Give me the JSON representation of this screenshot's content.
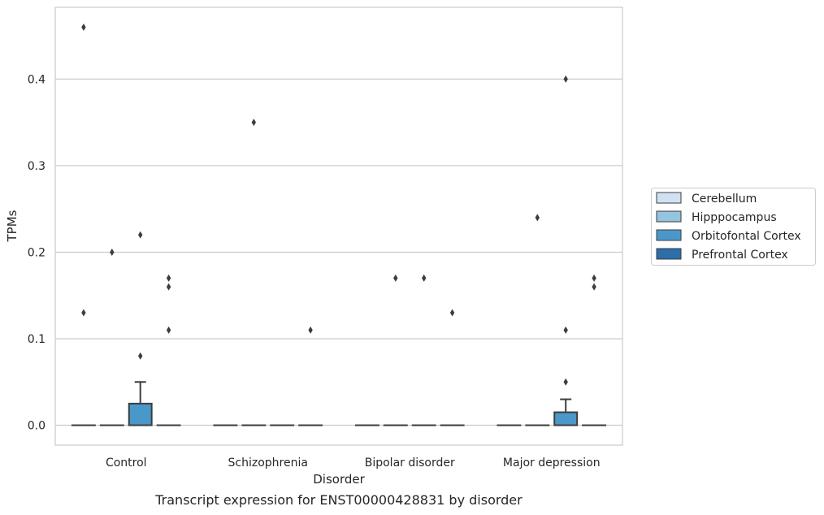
{
  "caption": "Transcript expression for ENST00000428831 by disorder",
  "chart_data": {
    "type": "box",
    "title": "",
    "xlabel": "Disorder",
    "ylabel": "TPMs",
    "categories": [
      "Control",
      "Schizophrenia",
      "Bipolar disorder",
      "Major depression"
    ],
    "ylim": [
      -0.023,
      0.483
    ],
    "yticks": [
      0.0,
      0.1,
      0.2,
      0.3,
      0.4
    ],
    "ytick_labels": [
      "0.0",
      "0.1",
      "0.2",
      "0.3",
      "0.4"
    ],
    "grid": "horizontal",
    "legend_position": "right",
    "series": [
      {
        "name": "Cerebellum",
        "color": "#d0e1f2",
        "boxes": [
          {
            "category": "Control",
            "q1": 0,
            "median": 0,
            "q3": 0,
            "whisker_low": 0,
            "whisker_high": 0,
            "outliers": [
              0.46,
              0.13
            ]
          },
          {
            "category": "Schizophrenia",
            "q1": 0,
            "median": 0,
            "q3": 0,
            "whisker_low": 0,
            "whisker_high": 0,
            "outliers": []
          },
          {
            "category": "Bipolar disorder",
            "q1": 0,
            "median": 0,
            "q3": 0,
            "whisker_low": 0,
            "whisker_high": 0,
            "outliers": []
          },
          {
            "category": "Major depression",
            "q1": 0,
            "median": 0,
            "q3": 0,
            "whisker_low": 0,
            "whisker_high": 0,
            "outliers": []
          }
        ]
      },
      {
        "name": "Hipppocampus",
        "color": "#94c4df",
        "boxes": [
          {
            "category": "Control",
            "q1": 0,
            "median": 0,
            "q3": 0,
            "whisker_low": 0,
            "whisker_high": 0,
            "outliers": [
              0.2
            ]
          },
          {
            "category": "Schizophrenia",
            "q1": 0,
            "median": 0,
            "q3": 0,
            "whisker_low": 0,
            "whisker_high": 0,
            "outliers": [
              0.35
            ]
          },
          {
            "category": "Bipolar disorder",
            "q1": 0,
            "median": 0,
            "q3": 0,
            "whisker_low": 0,
            "whisker_high": 0,
            "outliers": [
              0.17
            ]
          },
          {
            "category": "Major depression",
            "q1": 0,
            "median": 0,
            "q3": 0,
            "whisker_low": 0,
            "whisker_high": 0,
            "outliers": [
              0.24
            ]
          }
        ]
      },
      {
        "name": "Orbitofontal Cortex",
        "color": "#4a98c9",
        "boxes": [
          {
            "category": "Control",
            "q1": 0,
            "median": 0,
            "q3": 0.025,
            "whisker_low": 0,
            "whisker_high": 0.05,
            "outliers": [
              0.22,
              0.08
            ]
          },
          {
            "category": "Schizophrenia",
            "q1": 0,
            "median": 0,
            "q3": 0,
            "whisker_low": 0,
            "whisker_high": 0,
            "outliers": []
          },
          {
            "category": "Bipolar disorder",
            "q1": 0,
            "median": 0,
            "q3": 0,
            "whisker_low": 0,
            "whisker_high": 0,
            "outliers": [
              0.17
            ]
          },
          {
            "category": "Major depression",
            "q1": 0,
            "median": 0,
            "q3": 0.015,
            "whisker_low": 0,
            "whisker_high": 0.03,
            "outliers": [
              0.4,
              0.11,
              0.05
            ]
          }
        ]
      },
      {
        "name": "Prefrontal Cortex",
        "color": "#2b6ea9",
        "boxes": [
          {
            "category": "Control",
            "q1": 0,
            "median": 0,
            "q3": 0,
            "whisker_low": 0,
            "whisker_high": 0,
            "outliers": [
              0.17,
              0.16,
              0.11
            ]
          },
          {
            "category": "Schizophrenia",
            "q1": 0,
            "median": 0,
            "q3": 0,
            "whisker_low": 0,
            "whisker_high": 0,
            "outliers": [
              0.11
            ]
          },
          {
            "category": "Bipolar disorder",
            "q1": 0,
            "median": 0,
            "q3": 0,
            "whisker_low": 0,
            "whisker_high": 0,
            "outliers": [
              0.13
            ]
          },
          {
            "category": "Major depression",
            "q1": 0,
            "median": 0,
            "q3": 0,
            "whisker_low": 0,
            "whisker_high": 0,
            "outliers": [
              0.17,
              0.16
            ]
          }
        ]
      }
    ]
  }
}
